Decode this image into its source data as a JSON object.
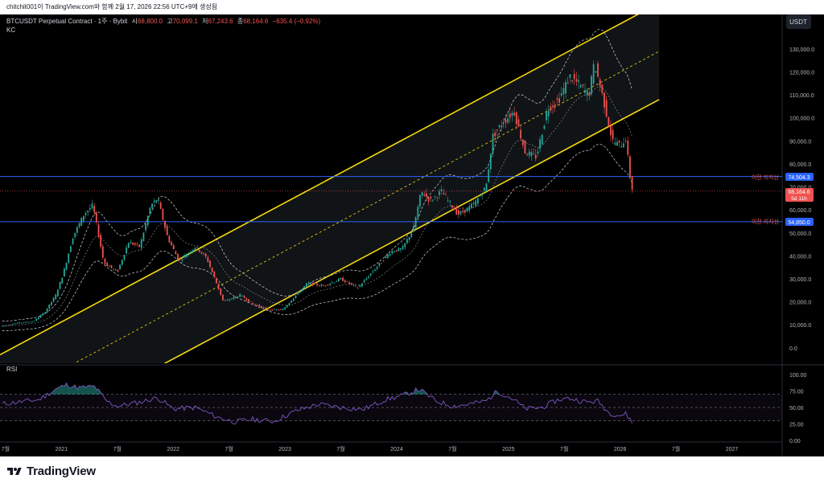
{
  "header": {
    "text": "chitchit001이 TradingView.com와 함께 2월 17, 2026 22:56 UTC+9에 생성됨"
  },
  "chart": {
    "symbol_line": "BTCUSDT Perpetual Contract · 1주 · Bybit",
    "ohlc": {
      "o_label": "시",
      "o_value": "68,800.0",
      "h_label": "고",
      "h_value": "70,099.1",
      "l_label": "저",
      "l_value": "67,243.6",
      "c_label": "종",
      "c_value": "68,164.6",
      "change": "−635.4 (−0.92%)"
    },
    "indicator_kc": "KC",
    "indicator_rsi": "RSI",
    "currency": "USDT",
    "price_labels": {
      "support1_value": "74,504.3",
      "last_value": "68,164.6",
      "last_countdown": "5d 11h",
      "support2_value": "54,850.0"
    },
    "line_labels": {
      "support1": "이전 지지선",
      "support2": "이전 지지선"
    },
    "colors": {
      "up": "#26a69a",
      "down": "#ef5350",
      "channel": "#f5d90a",
      "support": "#2962ff",
      "kc": "#d1d4dc",
      "rsi": "#7e57c2"
    }
  },
  "chart_data": {
    "type": "candlestick",
    "timeframe": "1W",
    "price_ticks": [
      0,
      10000,
      20000,
      30000,
      40000,
      50000,
      60000,
      70000,
      80000,
      90000,
      100000,
      110000,
      120000,
      130000
    ],
    "price_tick_labels": [
      "0.0",
      "10,000.0",
      "20,000.0",
      "30,000.0",
      "40,000.0",
      "50,000.0",
      "60,000.0",
      "70,000.0",
      "80,000.0",
      "90,000.0",
      "100,000.0",
      "110,000.0",
      "120,000.0",
      "130,000.0"
    ],
    "rsi_ticks": [
      0,
      25,
      50,
      75,
      100
    ],
    "rsi_tick_labels": [
      "0.00",
      "25.00",
      "50.00",
      "75.00",
      "100.00"
    ],
    "rsi_levels": [
      70,
      50,
      30
    ],
    "time_labels": [
      {
        "label": "7월",
        "t": 2020.5
      },
      {
        "label": "2021",
        "t": 2021.0
      },
      {
        "label": "7월",
        "t": 2021.5
      },
      {
        "label": "2022",
        "t": 2022.0
      },
      {
        "label": "7월",
        "t": 2022.5
      },
      {
        "label": "2023",
        "t": 2023.0
      },
      {
        "label": "7월",
        "t": 2023.5
      },
      {
        "label": "2024",
        "t": 2024.0
      },
      {
        "label": "7월",
        "t": 2024.5
      },
      {
        "label": "2025",
        "t": 2025.0
      },
      {
        "label": "7월",
        "t": 2025.5
      },
      {
        "label": "2026",
        "t": 2026.0
      },
      {
        "label": "7월",
        "t": 2026.5
      },
      {
        "label": "2027",
        "t": 2027.0
      }
    ],
    "t_range": [
      2020.45,
      2027.45
    ],
    "price_range": [
      -6000,
      145000
    ],
    "support_levels": [
      74504.3,
      54850.0
    ],
    "last_price": 68164.6,
    "price_path": [
      [
        2020.45,
        9300
      ],
      [
        2020.6,
        10800
      ],
      [
        2020.75,
        11500
      ],
      [
        2020.85,
        15500
      ],
      [
        2020.95,
        23000
      ],
      [
        2021.02,
        33000
      ],
      [
        2021.1,
        48000
      ],
      [
        2021.2,
        58000
      ],
      [
        2021.28,
        62000
      ],
      [
        2021.38,
        37000
      ],
      [
        2021.5,
        33000
      ],
      [
        2021.6,
        46000
      ],
      [
        2021.7,
        44000
      ],
      [
        2021.8,
        62000
      ],
      [
        2021.86,
        65000
      ],
      [
        2021.95,
        48000
      ],
      [
        2022.05,
        38000
      ],
      [
        2022.2,
        44000
      ],
      [
        2022.3,
        39000
      ],
      [
        2022.38,
        29000
      ],
      [
        2022.45,
        20000
      ],
      [
        2022.6,
        23000
      ],
      [
        2022.7,
        19500
      ],
      [
        2022.85,
        16500
      ],
      [
        2022.98,
        16600
      ],
      [
        2023.1,
        23000
      ],
      [
        2023.2,
        28000
      ],
      [
        2023.35,
        27000
      ],
      [
        2023.5,
        30000
      ],
      [
        2023.65,
        26000
      ],
      [
        2023.8,
        34000
      ],
      [
        2023.95,
        42000
      ],
      [
        2024.05,
        43000
      ],
      [
        2024.15,
        52000
      ],
      [
        2024.22,
        68000
      ],
      [
        2024.3,
        64000
      ],
      [
        2024.4,
        68000
      ],
      [
        2024.55,
        58000
      ],
      [
        2024.62,
        60000
      ],
      [
        2024.7,
        63000
      ],
      [
        2024.8,
        70000
      ],
      [
        2024.86,
        92000
      ],
      [
        2024.95,
        98000
      ],
      [
        2025.05,
        103000
      ],
      [
        2025.15,
        85000
      ],
      [
        2025.25,
        83000
      ],
      [
        2025.35,
        104000
      ],
      [
        2025.45,
        108000
      ],
      [
        2025.55,
        118000
      ],
      [
        2025.62,
        115000
      ],
      [
        2025.72,
        110000
      ],
      [
        2025.77,
        124000
      ],
      [
        2025.85,
        108000
      ],
      [
        2025.93,
        90000
      ],
      [
        2026.0,
        88000
      ],
      [
        2026.05,
        91000
      ],
      [
        2026.08,
        78000
      ],
      [
        2026.1,
        70000
      ],
      [
        2026.12,
        68164.6
      ]
    ],
    "channel_lines": [
      {
        "name": "upper",
        "p1": [
          2020.45,
          -3000
        ],
        "p2": [
          2026.35,
          150000
        ]
      },
      {
        "name": "middle",
        "p1": [
          2020.45,
          -24000
        ],
        "p2": [
          2026.35,
          129000
        ]
      },
      {
        "name": "lower",
        "p1": [
          2020.45,
          -45000
        ],
        "p2": [
          2026.35,
          108000
        ]
      }
    ],
    "rsi_path": [
      [
        2020.45,
        55
      ],
      [
        2020.8,
        62
      ],
      [
        2020.95,
        78
      ],
      [
        2021.05,
        85
      ],
      [
        2021.15,
        80
      ],
      [
        2021.3,
        82
      ],
      [
        2021.4,
        60
      ],
      [
        2021.5,
        52
      ],
      [
        2021.7,
        58
      ],
      [
        2021.86,
        65
      ],
      [
        2022.0,
        48
      ],
      [
        2022.2,
        50
      ],
      [
        2022.4,
        35
      ],
      [
        2022.55,
        28
      ],
      [
        2022.7,
        32
      ],
      [
        2022.9,
        29
      ],
      [
        2023.1,
        45
      ],
      [
        2023.3,
        55
      ],
      [
        2023.5,
        50
      ],
      [
        2023.7,
        47
      ],
      [
        2023.9,
        62
      ],
      [
        2024.05,
        68
      ],
      [
        2024.2,
        78
      ],
      [
        2024.35,
        60
      ],
      [
        2024.5,
        52
      ],
      [
        2024.65,
        55
      ],
      [
        2024.8,
        60
      ],
      [
        2024.9,
        75
      ],
      [
        2025.05,
        62
      ],
      [
        2025.15,
        48
      ],
      [
        2025.3,
        50
      ],
      [
        2025.45,
        62
      ],
      [
        2025.55,
        64
      ],
      [
        2025.7,
        58
      ],
      [
        2025.8,
        60
      ],
      [
        2025.9,
        42
      ],
      [
        2026.0,
        38
      ],
      [
        2026.05,
        40
      ],
      [
        2026.1,
        30
      ],
      [
        2026.12,
        27
      ]
    ]
  }
}
